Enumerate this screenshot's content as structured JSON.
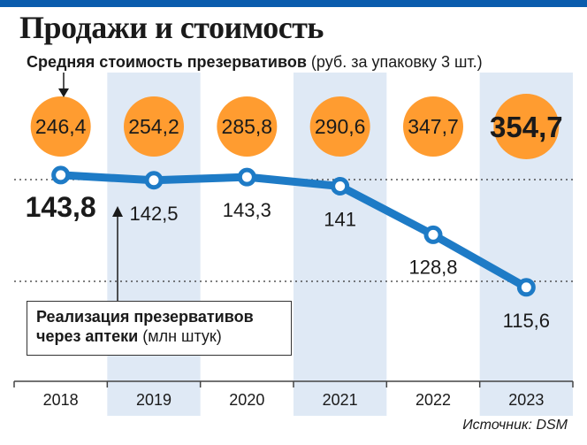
{
  "title": "Продажи и стоимость",
  "subtitle": {
    "bold": "Средняя стоимость презервативов",
    "normal": "(руб. за упаковку 3 шт.)"
  },
  "legend": {
    "line1": "Реализация презервативов",
    "line2_bold": "через аптеки",
    "line2_normal": "(млн штук)"
  },
  "source": "Источник: DSM",
  "colors": {
    "accent": "#ff9c30",
    "line": "#1e7bc6",
    "column": "#dfe9f5",
    "topbar": "#0a5cad"
  },
  "chart_data": {
    "type": "line",
    "categories": [
      "2018",
      "2019",
      "2020",
      "2021",
      "2022",
      "2023"
    ],
    "series": [
      {
        "values": [
          143.8,
          142.5,
          143.3,
          141,
          128.8,
          115.6
        ],
        "labels": [
          "143,8",
          "142,5",
          "143,3",
          "141",
          "128,8",
          "115,6"
        ]
      }
    ],
    "price_bubbles": {
      "values": [
        246.4,
        254.2,
        285.8,
        290.6,
        347.7,
        354.7
      ],
      "labels": [
        "246,4",
        "254,2",
        "285,8",
        "290,6",
        "347,7",
        "354,7"
      ]
    },
    "grid": "dotted"
  }
}
